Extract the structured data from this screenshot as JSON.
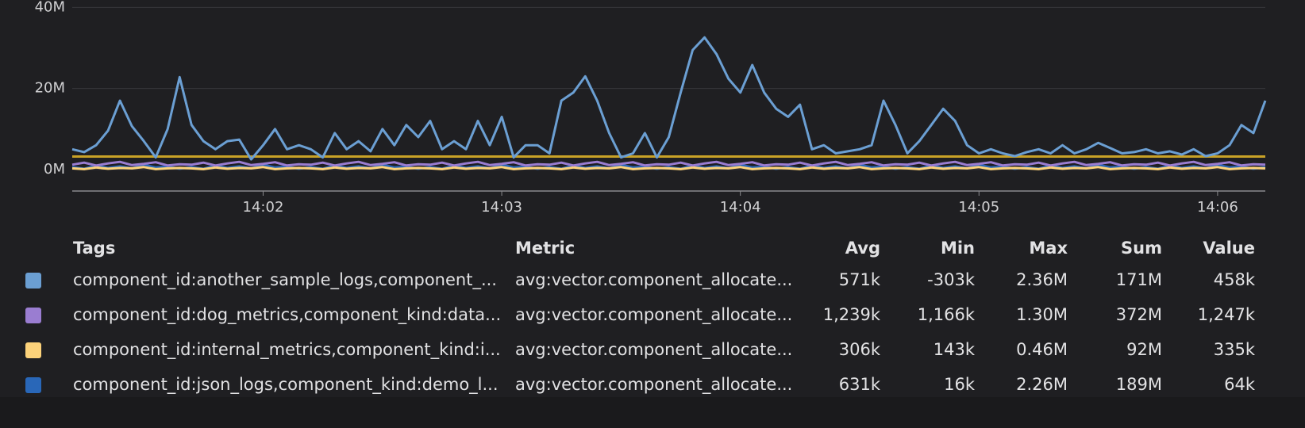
{
  "chart_data": {
    "type": "line",
    "x": [
      841.2,
      841.25,
      841.3,
      841.35,
      841.4,
      841.45,
      841.5,
      841.55,
      841.6,
      841.65,
      841.7,
      841.75,
      841.8,
      841.85,
      841.9,
      841.95,
      842,
      842.05,
      842.1,
      842.15,
      842.2,
      842.25,
      842.3,
      842.35,
      842.4,
      842.45,
      842.5,
      842.55,
      842.6,
      842.65,
      842.7,
      842.75,
      842.8,
      842.85,
      842.9,
      842.95,
      843,
      843.05,
      843.1,
      843.15,
      843.2,
      843.25,
      843.3,
      843.35,
      843.4,
      843.45,
      843.5,
      843.55,
      843.6,
      843.65,
      843.7,
      843.75,
      843.8,
      843.85,
      843.9,
      843.95,
      844,
      844.05,
      844.1,
      844.15,
      844.2,
      844.25,
      844.3,
      844.35,
      844.4,
      844.45,
      844.5,
      844.55,
      844.6,
      844.65,
      844.7,
      844.75,
      844.8,
      844.85,
      844.9,
      844.95,
      845,
      845.05,
      845.1,
      845.15,
      845.2,
      845.25,
      845.3,
      845.35,
      845.4,
      845.45,
      845.5,
      845.55,
      845.6,
      845.65,
      845.7,
      845.75,
      845.8,
      845.85,
      845.9,
      845.95,
      846,
      846.05,
      846.1,
      846.15,
      846.2
    ],
    "xlim": [
      841.2,
      846.2
    ],
    "xticks": [
      {
        "value": 842,
        "label": "14:02"
      },
      {
        "value": 843,
        "label": "14:03"
      },
      {
        "value": 844,
        "label": "14:04"
      },
      {
        "value": 845,
        "label": "14:05"
      },
      {
        "value": 846,
        "label": "14:06"
      }
    ],
    "ylim": [
      -5.3,
      40
    ],
    "yticks": [
      {
        "value": 0,
        "label": "0M"
      },
      {
        "value": 20,
        "label": "20M"
      },
      {
        "value": 40,
        "label": "40M"
      }
    ],
    "grid": true,
    "series": [
      {
        "name": "component_id:another_sample_logs,component_...",
        "color": "#6b9fd3",
        "values": [
          5,
          4.3,
          6,
          9.6,
          17,
          10.7,
          7,
          3,
          10,
          22.8,
          11,
          7,
          5,
          7,
          7.4,
          2.5,
          6,
          10,
          5,
          6,
          5,
          3,
          9,
          5,
          7,
          4.5,
          10,
          6,
          11,
          8,
          12,
          5,
          7,
          5,
          12,
          6,
          13,
          3,
          6,
          6,
          4,
          17,
          19,
          23,
          17,
          9,
          3,
          4,
          9,
          3,
          8,
          19,
          29.5,
          32.6,
          28.5,
          22.4,
          19,
          25.8,
          19,
          15,
          13,
          16,
          5,
          6,
          4,
          4.5,
          5,
          6,
          17,
          11,
          4,
          7,
          11,
          15,
          12,
          6,
          4,
          5,
          4,
          3.3,
          4.3,
          5,
          4,
          6,
          4,
          5,
          6.6,
          5.3,
          4,
          4.3,
          5,
          4,
          4.5,
          3.7,
          5,
          3.3,
          4,
          6,
          11,
          9,
          17
        ]
      },
      {
        "name": "component_id:dog_metrics,component_kind:data...",
        "color": "#9a7dd1",
        "values": [
          1.2,
          1.7,
          1,
          1.5,
          1.9,
          1.1,
          1.4,
          1.8,
          1,
          1.3,
          1.2,
          1.7,
          1,
          1.5,
          1.9,
          1.1,
          1.4,
          1.8,
          1,
          1.3,
          1.2,
          1.7,
          1,
          1.5,
          1.9,
          1.1,
          1.4,
          1.8,
          1,
          1.3,
          1.2,
          1.7,
          1,
          1.5,
          1.9,
          1.1,
          1.4,
          1.8,
          1,
          1.3,
          1.2,
          1.7,
          1,
          1.5,
          1.9,
          1.1,
          1.4,
          1.8,
          1,
          1.3,
          1.2,
          1.7,
          1,
          1.5,
          1.9,
          1.1,
          1.4,
          1.8,
          1,
          1.3,
          1.2,
          1.7,
          1,
          1.5,
          1.9,
          1.1,
          1.4,
          1.8,
          1,
          1.3,
          1.2,
          1.7,
          1,
          1.5,
          1.9,
          1.1,
          1.4,
          1.8,
          1,
          1.3,
          1.2,
          1.7,
          1,
          1.5,
          1.9,
          1.1,
          1.4,
          1.8,
          1,
          1.3,
          1.2,
          1.7,
          1,
          1.5,
          1.9,
          1.1,
          1.4,
          1.8,
          1,
          1.3,
          1.2
        ]
      },
      {
        "name": "component_id:internal_metrics,component_kind:i...",
        "color": "#fcd27a",
        "values": [
          0.3,
          0.1,
          0.5,
          0.2,
          0.4,
          0.3,
          0.6,
          0.1,
          0.3,
          0.4,
          0.3,
          0.1,
          0.5,
          0.2,
          0.4,
          0.3,
          0.6,
          0.1,
          0.3,
          0.4,
          0.3,
          0.1,
          0.5,
          0.2,
          0.4,
          0.3,
          0.6,
          0.1,
          0.3,
          0.4,
          0.3,
          0.1,
          0.5,
          0.2,
          0.4,
          0.3,
          0.6,
          0.1,
          0.3,
          0.4,
          0.3,
          0.1,
          0.5,
          0.2,
          0.4,
          0.3,
          0.6,
          0.1,
          0.3,
          0.4,
          0.3,
          0.1,
          0.5,
          0.2,
          0.4,
          0.3,
          0.6,
          0.1,
          0.3,
          0.4,
          0.3,
          0.1,
          0.5,
          0.2,
          0.4,
          0.3,
          0.6,
          0.1,
          0.3,
          0.4,
          0.3,
          0.1,
          0.5,
          0.2,
          0.4,
          0.3,
          0.6,
          0.1,
          0.3,
          0.4,
          0.3,
          0.1,
          0.5,
          0.2,
          0.4,
          0.3,
          0.6,
          0.1,
          0.3,
          0.4,
          0.3,
          0.1,
          0.5,
          0.2,
          0.4,
          0.3,
          0.6,
          0.1,
          0.3,
          0.4,
          0.3
        ]
      },
      {
        "name": "component_id:json_logs,component_kind:demo_l...",
        "color": "#2967b8",
        "values": [
          0.6,
          0.2,
          1,
          0.4,
          0.8,
          0.3,
          1.2,
          0.5,
          0.7,
          0.2,
          0.6,
          0.2,
          1,
          0.4,
          0.8,
          0.3,
          1.2,
          0.5,
          0.7,
          0.2,
          0.6,
          0.2,
          1,
          0.4,
          0.8,
          0.3,
          1.2,
          0.5,
          0.7,
          0.2,
          0.6,
          0.2,
          1,
          0.4,
          0.8,
          0.3,
          1.2,
          0.5,
          0.7,
          0.2,
          0.6,
          0.2,
          1,
          0.4,
          0.8,
          0.3,
          1.2,
          0.5,
          0.7,
          0.2,
          0.6,
          0.2,
          1,
          0.4,
          0.8,
          0.3,
          1.2,
          0.5,
          0.7,
          0.2,
          0.6,
          0.2,
          1,
          0.4,
          0.8,
          0.3,
          1.2,
          0.5,
          0.7,
          0.2,
          0.6,
          0.2,
          1,
          0.4,
          0.8,
          0.3,
          1.2,
          0.5,
          0.7,
          0.2,
          0.6,
          0.2,
          1,
          0.4,
          0.8,
          0.3,
          1.2,
          0.5,
          0.7,
          0.2,
          0.6,
          0.2,
          1,
          0.4,
          0.8,
          0.3,
          1.2,
          0.5,
          0.7,
          0.2,
          0.6
        ]
      },
      {
        "color": "#c9a227",
        "values": [
          3.2,
          3.2,
          3.2,
          3.2,
          3.2,
          3.2,
          3.2,
          3.2,
          3.2,
          3.2,
          3.2,
          3.2,
          3.2,
          3.2,
          3.2,
          3.2,
          3.2,
          3.2,
          3.2,
          3.2,
          3.2,
          3.2,
          3.2,
          3.2,
          3.2,
          3.2,
          3.2,
          3.2,
          3.2,
          3.2,
          3.2,
          3.2,
          3.2,
          3.2,
          3.2,
          3.2,
          3.2,
          3.2,
          3.2,
          3.2,
          3.2,
          3.2,
          3.2,
          3.2,
          3.2,
          3.2,
          3.2,
          3.2,
          3.2,
          3.2,
          3.2,
          3.2,
          3.2,
          3.2,
          3.2,
          3.2,
          3.2,
          3.2,
          3.2,
          3.2,
          3.2,
          3.2,
          3.2,
          3.2,
          3.2,
          3.2,
          3.2,
          3.2,
          3.2,
          3.2,
          3.2,
          3.2,
          3.2,
          3.2,
          3.2,
          3.2,
          3.2,
          3.2,
          3.2,
          3.2,
          3.2,
          3.2,
          3.2,
          3.2,
          3.2,
          3.2,
          3.2,
          3.2,
          3.2,
          3.2,
          3.2,
          3.2,
          3.2,
          3.2,
          3.2,
          3.2,
          3.2,
          3.2,
          3.2,
          3.2,
          3.2
        ]
      }
    ]
  },
  "legend_table": {
    "columns": [
      "Tags",
      "Metric",
      "Avg",
      "Min",
      "Max",
      "Sum",
      "Value"
    ],
    "rows": [
      [
        "avg:vector.component_allocate...",
        "571k",
        "-303k",
        "2.36M",
        "171M",
        "458k"
      ],
      [
        "avg:vector.component_allocate...",
        "1,239k",
        "1,166k",
        "1.30M",
        "372M",
        "1,247k"
      ],
      [
        "avg:vector.component_allocate...",
        "306k",
        "143k",
        "0.46M",
        "92M",
        "335k"
      ],
      [
        "avg:vector.component_allocate...",
        "631k",
        "16k",
        "2.26M",
        "189M",
        "64k"
      ]
    ]
  }
}
